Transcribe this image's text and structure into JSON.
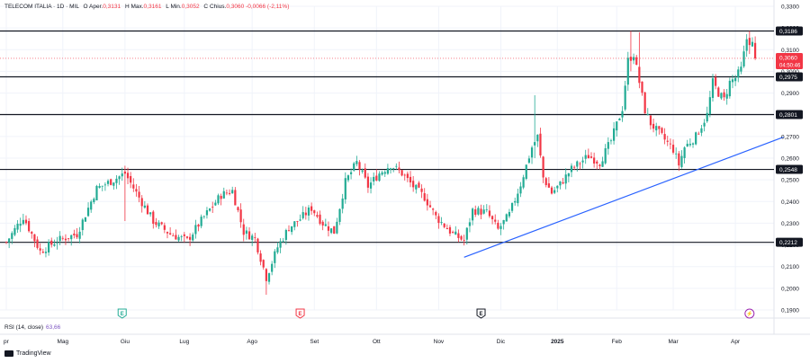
{
  "header": {
    "symbol": "TELECOM ITALIA · 1D · MIL",
    "open_label": "O",
    "open_prefix": "Aper.",
    "open": "0,3131",
    "high_label": "H",
    "high_prefix": "Max.",
    "high": "0,3161",
    "low_label": "L",
    "low_prefix": "Min.",
    "low": "0,3052",
    "close_label": "C",
    "close_prefix": "Chius.",
    "close": "0,3060",
    "change": "-0,0066 (-2,11%)"
  },
  "price_badge": {
    "price": "0,3060",
    "countdown": "04:50:46",
    "color": "#f23645"
  },
  "rsi": {
    "label": "RSI (14, close)",
    "value": "63,66",
    "color": "#7e57c2"
  },
  "footer": {
    "brand": "TradingView"
  },
  "colors": {
    "up": "#22ab94",
    "down": "#f23645",
    "trendline": "#2962ff",
    "level": "#131722"
  },
  "event_markers": [
    {
      "label": "E",
      "type": "earnings",
      "color": "#22ab94",
      "date_index": 41
    },
    {
      "label": "E",
      "type": "earnings",
      "color": "#f23645",
      "date_index": 104
    },
    {
      "label": "E",
      "type": "earnings",
      "color": "#131722",
      "date_index": 168
    },
    {
      "label": "⚡",
      "type": "dividend",
      "color": "#9c27b0",
      "date_index": 263
    }
  ],
  "chart_data": {
    "type": "candlestick",
    "y_axis": {
      "ticks": [
        "0,3300",
        "0,3200",
        "0,3100",
        "0,3000",
        "0,2900",
        "0,2800",
        "0,2700",
        "0,2600",
        "0,2500",
        "0,2400",
        "0,2300",
        "0,2200",
        "0,2100",
        "0,2000",
        "0,1900"
      ],
      "min": 0.19,
      "max": 0.33
    },
    "x_axis": {
      "ticks": [
        "pr",
        "Mag",
        "Giu",
        "Lug",
        "Ago",
        "Set",
        "Ott",
        "Nov",
        "Dic",
        "2025",
        "Feb",
        "Mar",
        "Apr"
      ],
      "tick_index": [
        0,
        20,
        42,
        63,
        87,
        109,
        131,
        153,
        175,
        195,
        216,
        236,
        258
      ],
      "bold": [
        "2025"
      ]
    },
    "horizontal_levels": [
      {
        "value": 0.3186,
        "label": "0,3186"
      },
      {
        "value": 0.2975,
        "label": "0,2975"
      },
      {
        "value": 0.2801,
        "label": "0,2801"
      },
      {
        "value": 0.2548,
        "label": "0,2548"
      },
      {
        "value": 0.2212,
        "label": "0,2212"
      }
    ],
    "trendline": {
      "from": {
        "index": 162,
        "value": 0.2143
      },
      "to": {
        "index": 275,
        "value": 0.2697
      }
    },
    "key_points": [
      [
        0,
        0.2212
      ],
      [
        6,
        0.233
      ],
      [
        12,
        0.217
      ],
      [
        18,
        0.222
      ],
      [
        25,
        0.225
      ],
      [
        32,
        0.246
      ],
      [
        38,
        0.25
      ],
      [
        42,
        0.253
      ],
      [
        46,
        0.244
      ],
      [
        52,
        0.231
      ],
      [
        58,
        0.225
      ],
      [
        64,
        0.222
      ],
      [
        70,
        0.233
      ],
      [
        76,
        0.243
      ],
      [
        80,
        0.245
      ],
      [
        84,
        0.226
      ],
      [
        88,
        0.223
      ],
      [
        92,
        0.205
      ],
      [
        96,
        0.219
      ],
      [
        100,
        0.228
      ],
      [
        104,
        0.232
      ],
      [
        108,
        0.237
      ],
      [
        112,
        0.23
      ],
      [
        116,
        0.226
      ],
      [
        120,
        0.249
      ],
      [
        124,
        0.258
      ],
      [
        128,
        0.247
      ],
      [
        132,
        0.253
      ],
      [
        136,
        0.257
      ],
      [
        140,
        0.253
      ],
      [
        144,
        0.247
      ],
      [
        148,
        0.242
      ],
      [
        152,
        0.233
      ],
      [
        158,
        0.225
      ],
      [
        162,
        0.222
      ],
      [
        165,
        0.236
      ],
      [
        170,
        0.235
      ],
      [
        174,
        0.227
      ],
      [
        178,
        0.234
      ],
      [
        182,
        0.248
      ],
      [
        186,
        0.265
      ],
      [
        188,
        0.27
      ],
      [
        190,
        0.251
      ],
      [
        193,
        0.244
      ],
      [
        196,
        0.248
      ],
      [
        200,
        0.255
      ],
      [
        206,
        0.261
      ],
      [
        210,
        0.258
      ],
      [
        214,
        0.268
      ],
      [
        218,
        0.283
      ],
      [
        220,
        0.305
      ],
      [
        222,
        0.308
      ],
      [
        224,
        0.295
      ],
      [
        226,
        0.282
      ],
      [
        228,
        0.276
      ],
      [
        232,
        0.27
      ],
      [
        236,
        0.264
      ],
      [
        238,
        0.257
      ],
      [
        240,
        0.265
      ],
      [
        244,
        0.27
      ],
      [
        248,
        0.28
      ],
      [
        250,
        0.295
      ],
      [
        252,
        0.29
      ],
      [
        254,
        0.287
      ],
      [
        256,
        0.295
      ],
      [
        258,
        0.297
      ],
      [
        260,
        0.301
      ],
      [
        262,
        0.315
      ],
      [
        264,
        0.3126
      ],
      [
        265,
        0.306
      ]
    ]
  }
}
